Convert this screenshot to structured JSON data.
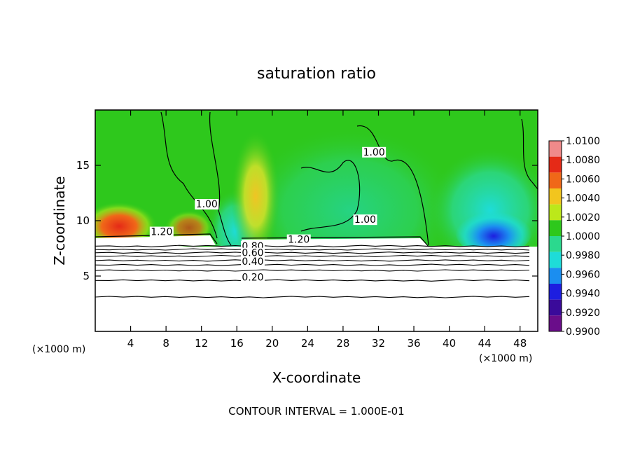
{
  "chart_data": {
    "type": "heatmap",
    "title": "saturation ratio",
    "xlabel": "X-coordinate",
    "ylabel": "Z-coordinate",
    "x_unit_left": "(×1000 m)",
    "x_unit_right": "(×1000 m)",
    "xlim": [
      0,
      50
    ],
    "ylim": [
      0,
      20
    ],
    "x_ticks": [
      4,
      8,
      12,
      16,
      20,
      24,
      28,
      32,
      36,
      40,
      44,
      48
    ],
    "y_ticks": [
      5,
      10,
      15
    ],
    "footer": "CONTOUR INTERVAL = 1.000E-01",
    "colorbar": {
      "labels": [
        "1.0100",
        "1.0080",
        "1.0060",
        "1.0040",
        "1.0020",
        "1.0000",
        "0.9980",
        "0.9960",
        "0.9940",
        "0.9920",
        "0.9900"
      ],
      "colors": [
        "#f08a8a",
        "#e52a17",
        "#f06818",
        "#f2c51e",
        "#bce81a",
        "#2ec81c",
        "#2bd98e",
        "#1edcd8",
        "#1b8ef0",
        "#1d1ee0",
        "#3a0a9a",
        "#6a0d8a"
      ]
    },
    "contour_labels": [
      {
        "text": "1.20",
        "x": 7.5,
        "z": 8.7
      },
      {
        "text": "1.20",
        "x": 23.0,
        "z": 8.0
      },
      {
        "text": "1.00",
        "x": 30.5,
        "z": 9.8
      },
      {
        "text": "1.00",
        "x": 12.6,
        "z": 11.2
      },
      {
        "text": "1.00",
        "x": 31.5,
        "z": 15.9
      },
      {
        "text": "0.80",
        "x": 17.8,
        "z": 7.4
      },
      {
        "text": "0.60",
        "x": 17.8,
        "z": 6.8
      },
      {
        "text": "0.40",
        "x": 17.8,
        "z": 6.0
      },
      {
        "text": "0.20",
        "x": 17.8,
        "z": 4.6
      }
    ],
    "horizontal_contours_z": [
      3.1,
      4.6,
      5.5,
      6.0,
      6.4,
      6.8,
      7.1,
      7.4,
      7.7
    ]
  }
}
